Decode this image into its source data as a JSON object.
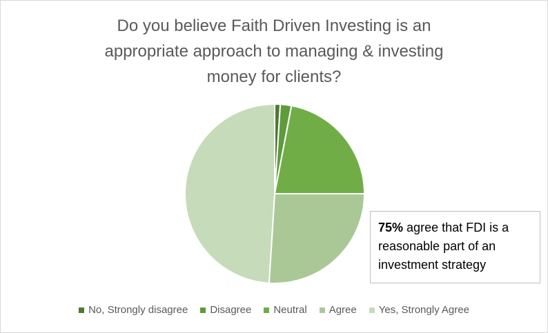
{
  "chart_data": {
    "type": "pie",
    "title": "Do you believe Faith Driven Investing is an appropriate approach to managing & investing money for clients?",
    "categories": [
      "No, Strongly disagree",
      "Disagree",
      "Neutral",
      "Agree",
      "Yes, Strongly Agree"
    ],
    "values": [
      1,
      2,
      22,
      26,
      49
    ],
    "colors": [
      "#4e7a34",
      "#5f9b3c",
      "#70ad47",
      "#a9c896",
      "#c5dbb9"
    ],
    "annotation": {
      "bold": "75%",
      "text": "agree that FDI is a reasonable part of an investment strategy"
    },
    "legend": "bottom"
  }
}
